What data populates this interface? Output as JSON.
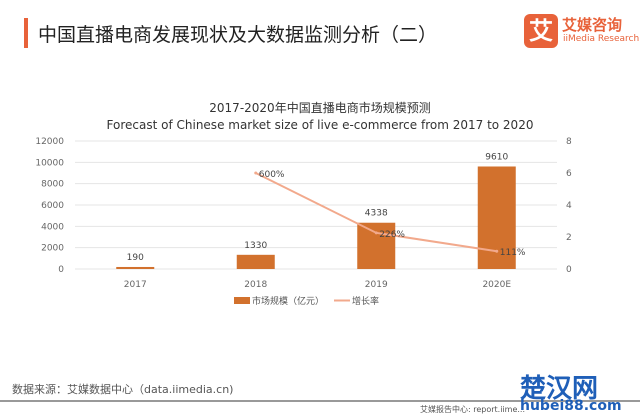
{
  "header": {
    "title": "中国直播电商发展现状及大数据监测分析（二）",
    "brand": "艾媒咨询",
    "brand_logo": "艾",
    "brand_en": "iiMedia Research"
  },
  "footer": {
    "source": "数据来源：艾媒数据中心（data.iimedia.cn)",
    "report": "艾媒报告中心: report.iime...",
    "watermark": "楚汉网",
    "watermark_url": "hubei88.com"
  },
  "colors": {
    "accent": "#e8623a",
    "bar": "#d2712d",
    "line": "#f2a98c"
  },
  "chart_data": {
    "type": "bar+line",
    "title": "2017-2020年中国直播电商市场规模预测",
    "subtitle": "Forecast of Chinese market size of live e-commerce from 2017 to 2020",
    "categories": [
      "2017",
      "2018",
      "2019",
      "2020E"
    ],
    "series": [
      {
        "name": "市场规模（亿元）",
        "type": "bar",
        "axis": "left",
        "values": [
          190,
          1330,
          4338,
          9610
        ],
        "labels": [
          "190",
          "1330",
          "4338",
          "9610"
        ]
      },
      {
        "name": "增长率",
        "type": "line",
        "axis": "right",
        "values": [
          null,
          6,
          2.26,
          1.11
        ],
        "labels": [
          "",
          "600%",
          "226%",
          "111%"
        ]
      }
    ],
    "y_left": {
      "ylim": [
        0,
        12000
      ],
      "ticks": [
        "0",
        "2000",
        "4000",
        "6000",
        "8000",
        "10000",
        "12000"
      ]
    },
    "y_right": {
      "ylim": [
        0,
        8
      ],
      "ticks": [
        "0",
        "2",
        "4",
        "6",
        "8"
      ]
    },
    "grid": true,
    "legend": "bottom"
  }
}
